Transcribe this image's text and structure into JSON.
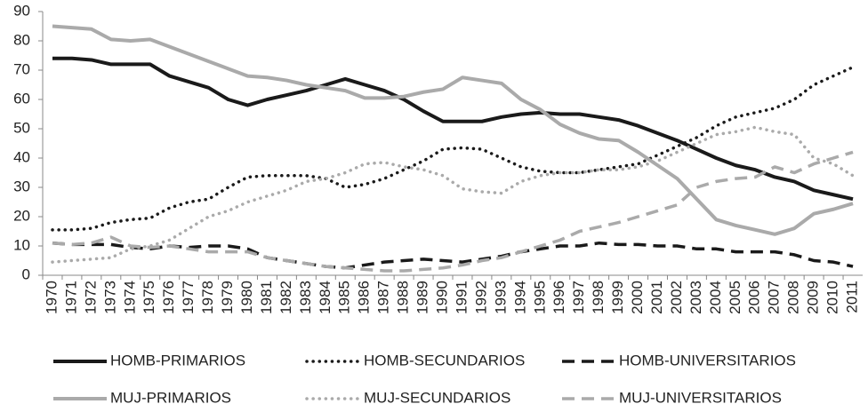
{
  "chart_data": {
    "type": "line",
    "categories": [
      "1970",
      "1971",
      "1972",
      "1973",
      "1974",
      "1975",
      "1976",
      "1977",
      "1978",
      "1979",
      "1980",
      "1981",
      "1982",
      "1983",
      "1984",
      "1985",
      "1986",
      "1987",
      "1988",
      "1989",
      "1990",
      "1991",
      "1992",
      "1993",
      "1994",
      "1995",
      "1996",
      "1997",
      "1998",
      "1999",
      "2000",
      "2001",
      "2002",
      "2003",
      "2004",
      "2005",
      "2006",
      "2007",
      "2008",
      "2009",
      "2010",
      "2011"
    ],
    "ylim": [
      0,
      90
    ],
    "yticks": [
      0,
      10,
      20,
      30,
      40,
      50,
      60,
      70,
      80,
      90
    ],
    "grid": false,
    "legend": "bottom",
    "series": [
      {
        "name": "HOMB-PRIMARIOS",
        "color": "#1a1a1a",
        "dash": "solid",
        "values": [
          74,
          74,
          73.5,
          72,
          72,
          72,
          68,
          66,
          64,
          60,
          58,
          60,
          61.5,
          63,
          65,
          67,
          65,
          63,
          60,
          56,
          52.5,
          52.5,
          52.5,
          54,
          55,
          55.5,
          55,
          55,
          54,
          53,
          51,
          48.5,
          46,
          43,
          40,
          37.5,
          36,
          33.5,
          32,
          29,
          27.5,
          26
        ]
      },
      {
        "name": "HOMB-SECUNDARIOS",
        "color": "#1a1a1a",
        "dash": "dotted",
        "values": [
          15.5,
          15.5,
          16,
          18,
          19,
          19.5,
          23,
          25,
          26,
          30,
          33.5,
          34,
          34,
          34,
          33,
          30,
          31,
          33,
          36,
          39,
          43,
          43.5,
          43,
          40,
          37,
          35.5,
          35,
          35,
          36,
          37,
          38,
          41,
          44,
          47,
          51,
          54,
          55.5,
          57,
          60,
          65,
          68,
          71
        ]
      },
      {
        "name": "HOMB-UNIVERSITARIOS",
        "color": "#1a1a1a",
        "dash": "dashed",
        "values": [
          11,
          10.5,
          10.5,
          10.5,
          9.5,
          9,
          10,
          9.5,
          10,
          10,
          9,
          6,
          5,
          4,
          3,
          2.5,
          3.5,
          4.5,
          5,
          5.5,
          5,
          4.5,
          5.5,
          6.5,
          8,
          9,
          10,
          10,
          11,
          10.5,
          10.5,
          10,
          10,
          9,
          9,
          8,
          8,
          8,
          7,
          5,
          4.5,
          3
        ]
      },
      {
        "name": "MUJ-PRIMARIOS",
        "color": "#aaaaaa",
        "dash": "solid",
        "values": [
          85,
          84.5,
          84,
          80.5,
          80,
          80.5,
          78,
          75.5,
          73,
          70.5,
          68,
          67.5,
          66.5,
          65,
          64,
          63,
          60.5,
          60.5,
          61,
          62.5,
          63.5,
          67.5,
          66.5,
          65.5,
          60,
          56.5,
          51.5,
          48.5,
          46.5,
          46,
          42,
          37.5,
          33,
          26,
          19,
          17,
          15.5,
          14,
          16,
          21,
          22.5,
          24.5
        ]
      },
      {
        "name": "MUJ-SECUNDARIOS",
        "color": "#aaaaaa",
        "dash": "dotted",
        "values": [
          4.5,
          5,
          5.5,
          6,
          9,
          10,
          12,
          16,
          20,
          22,
          25,
          27,
          29,
          32,
          33,
          35,
          38,
          38.5,
          37,
          36,
          34,
          29.5,
          28.5,
          28,
          32,
          34,
          35,
          35,
          36,
          36,
          37,
          39,
          42,
          45,
          48,
          49,
          50.5,
          49,
          48,
          40,
          38,
          34
        ]
      },
      {
        "name": "MUJ-UNIVERSITARIOS",
        "color": "#aaaaaa",
        "dash": "dashed",
        "values": [
          11,
          10.5,
          11,
          13,
          10,
          9.5,
          10,
          9,
          8,
          8,
          8,
          6,
          5,
          4,
          3,
          2.5,
          2,
          1.5,
          1.5,
          2,
          2.5,
          3.5,
          5,
          6,
          8,
          10,
          12,
          15,
          16.5,
          18,
          20,
          22,
          24,
          30,
          32,
          33,
          33.5,
          37,
          35,
          38,
          40,
          42
        ]
      }
    ]
  }
}
